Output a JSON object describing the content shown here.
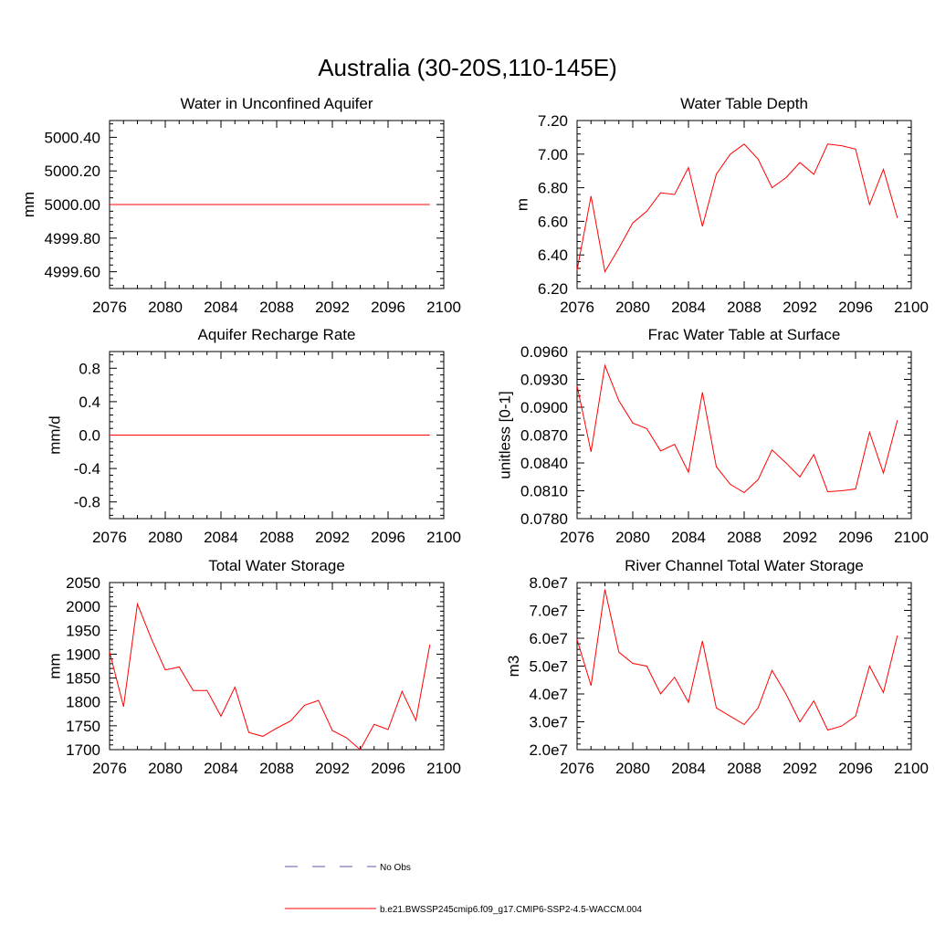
{
  "figure": {
    "title": "Australia (30-20S,110-145E)"
  },
  "legend": {
    "entries": [
      {
        "label": "No Obs",
        "color": "#5555aa",
        "dashed": true
      },
      {
        "label": "b.e21.BWSSP245cmip6.f09_g17.CMIP6-SSP2-4.5-WACCM.004",
        "color": "#ff0000",
        "dashed": false
      }
    ]
  },
  "chart_data": [
    {
      "type": "line",
      "title": "Water in Unconfined Aquifer",
      "ylabel": "mm",
      "xlim": [
        2076,
        2100
      ],
      "ylim": [
        4999.5,
        5000.5
      ],
      "yticks": [
        4999.6,
        4999.8,
        5000.0,
        5000.2,
        5000.4
      ],
      "ytick_labels": [
        "4999.60",
        "4999.80",
        "5000.00",
        "5000.20",
        "5000.40"
      ],
      "xticks": [
        2076,
        2080,
        2084,
        2088,
        2092,
        2096,
        2100
      ],
      "xtick_labels": [
        "2076",
        "2080",
        "2084",
        "2088",
        "2092",
        "2096",
        "2100"
      ],
      "series": [
        {
          "color": "#ff0000",
          "x": [
            2076,
            2077,
            2078,
            2079,
            2080,
            2081,
            2082,
            2083,
            2084,
            2085,
            2086,
            2087,
            2088,
            2089,
            2090,
            2091,
            2092,
            2093,
            2094,
            2095,
            2096,
            2097,
            2098,
            2099
          ],
          "y": [
            5000,
            5000,
            5000,
            5000,
            5000,
            5000,
            5000,
            5000,
            5000,
            5000,
            5000,
            5000,
            5000,
            5000,
            5000,
            5000,
            5000,
            5000,
            5000,
            5000,
            5000,
            5000,
            5000,
            5000
          ]
        }
      ]
    },
    {
      "type": "line",
      "title": "Water Table Depth",
      "ylabel": "m",
      "xlim": [
        2076,
        2100
      ],
      "ylim": [
        6.2,
        7.2
      ],
      "yticks": [
        6.2,
        6.4,
        6.6,
        6.8,
        7.0,
        7.2
      ],
      "ytick_labels": [
        "6.20",
        "6.40",
        "6.60",
        "6.80",
        "7.00",
        "7.20"
      ],
      "xticks": [
        2076,
        2080,
        2084,
        2088,
        2092,
        2096,
        2100
      ],
      "xtick_labels": [
        "2076",
        "2080",
        "2084",
        "2088",
        "2092",
        "2096",
        "2100"
      ],
      "series": [
        {
          "color": "#ff0000",
          "x": [
            2076,
            2077,
            2078,
            2079,
            2080,
            2081,
            2082,
            2083,
            2084,
            2085,
            2086,
            2087,
            2088,
            2089,
            2090,
            2091,
            2092,
            2093,
            2094,
            2095,
            2096,
            2097,
            2098,
            2099
          ],
          "y": [
            6.31,
            6.75,
            6.3,
            6.44,
            6.59,
            6.66,
            6.77,
            6.76,
            6.92,
            6.57,
            6.88,
            7.0,
            7.06,
            6.97,
            6.8,
            6.86,
            6.95,
            6.88,
            7.06,
            7.05,
            7.03,
            6.7,
            6.91,
            6.62
          ]
        }
      ]
    },
    {
      "type": "line",
      "title": "Aquifer Recharge Rate",
      "ylabel": "mm/d",
      "xlim": [
        2076,
        2100
      ],
      "ylim": [
        -1.0,
        1.0
      ],
      "yticks": [
        -0.8,
        -0.4,
        0.0,
        0.4,
        0.8
      ],
      "ytick_labels": [
        "-0.8",
        "-0.4",
        "0.0",
        "0.4",
        "0.8"
      ],
      "xticks": [
        2076,
        2080,
        2084,
        2088,
        2092,
        2096,
        2100
      ],
      "xtick_labels": [
        "2076",
        "2080",
        "2084",
        "2088",
        "2092",
        "2096",
        "2100"
      ],
      "series": [
        {
          "color": "#ff0000",
          "x": [
            2076,
            2077,
            2078,
            2079,
            2080,
            2081,
            2082,
            2083,
            2084,
            2085,
            2086,
            2087,
            2088,
            2089,
            2090,
            2091,
            2092,
            2093,
            2094,
            2095,
            2096,
            2097,
            2098,
            2099
          ],
          "y": [
            0,
            0,
            0,
            0,
            0,
            0,
            0,
            0,
            0,
            0,
            0,
            0,
            0,
            0,
            0,
            0,
            0,
            0,
            0,
            0,
            0,
            0,
            0,
            0
          ]
        }
      ]
    },
    {
      "type": "line",
      "title": "Frac Water Table at Surface",
      "ylabel": "unitless [0-1]",
      "xlim": [
        2076,
        2100
      ],
      "ylim": [
        0.078,
        0.096
      ],
      "yticks": [
        0.078,
        0.081,
        0.084,
        0.087,
        0.09,
        0.093,
        0.096
      ],
      "ytick_labels": [
        "0.0780",
        "0.0810",
        "0.0840",
        "0.0870",
        "0.0900",
        "0.0930",
        "0.0960"
      ],
      "xticks": [
        2076,
        2080,
        2084,
        2088,
        2092,
        2096,
        2100
      ],
      "xtick_labels": [
        "2076",
        "2080",
        "2084",
        "2088",
        "2092",
        "2096",
        "2100"
      ],
      "series": [
        {
          "color": "#ff0000",
          "x": [
            2076,
            2077,
            2078,
            2079,
            2080,
            2081,
            2082,
            2083,
            2084,
            2085,
            2086,
            2087,
            2088,
            2089,
            2090,
            2091,
            2092,
            2093,
            2094,
            2095,
            2096,
            2097,
            2098,
            2099
          ],
          "y": [
            0.0923,
            0.0852,
            0.0945,
            0.0907,
            0.0883,
            0.0877,
            0.0853,
            0.086,
            0.083,
            0.0916,
            0.0836,
            0.0817,
            0.0808,
            0.0822,
            0.0854,
            0.084,
            0.0825,
            0.0849,
            0.0809,
            0.081,
            0.0812,
            0.0873,
            0.0829,
            0.0886
          ]
        }
      ]
    },
    {
      "type": "line",
      "title": "Total Water Storage",
      "ylabel": "mm",
      "xlim": [
        2076,
        2100
      ],
      "ylim": [
        1700,
        2050
      ],
      "yticks": [
        1700,
        1750,
        1800,
        1850,
        1900,
        1950,
        2000,
        2050
      ],
      "ytick_labels": [
        "1700",
        "1750",
        "1800",
        "1850",
        "1900",
        "1950",
        "2000",
        "2050"
      ],
      "xticks": [
        2076,
        2080,
        2084,
        2088,
        2092,
        2096,
        2100
      ],
      "xtick_labels": [
        "2076",
        "2080",
        "2084",
        "2088",
        "2092",
        "2096",
        "2100"
      ],
      "series": [
        {
          "color": "#ff0000",
          "x": [
            2076,
            2077,
            2078,
            2079,
            2080,
            2081,
            2082,
            2083,
            2084,
            2085,
            2086,
            2087,
            2088,
            2089,
            2090,
            2091,
            2092,
            2093,
            2094,
            2095,
            2096,
            2097,
            2098,
            2099
          ],
          "y": [
            1905,
            1790,
            2005,
            1932,
            1867,
            1873,
            1824,
            1824,
            1770,
            1831,
            1736,
            1728,
            1745,
            1760,
            1793,
            1803,
            1740,
            1725,
            1700,
            1753,
            1742,
            1822,
            1761,
            1920
          ]
        }
      ]
    },
    {
      "type": "line",
      "title": "River Channel Total Water Storage",
      "ylabel": "m3",
      "xlim": [
        2076,
        2100
      ],
      "ylim": [
        20000000,
        80000000
      ],
      "yticks": [
        20000000,
        30000000,
        40000000,
        50000000,
        60000000,
        70000000,
        80000000
      ],
      "ytick_labels": [
        "2.0e7",
        "3.0e7",
        "4.0e7",
        "5.0e7",
        "6.0e7",
        "7.0e7",
        "8.0e7"
      ],
      "xticks": [
        2076,
        2080,
        2084,
        2088,
        2092,
        2096,
        2100
      ],
      "xtick_labels": [
        "2076",
        "2080",
        "2084",
        "2088",
        "2092",
        "2096",
        "2100"
      ],
      "series": [
        {
          "color": "#ff0000",
          "x": [
            2076,
            2077,
            2078,
            2079,
            2080,
            2081,
            2082,
            2083,
            2084,
            2085,
            2086,
            2087,
            2088,
            2089,
            2090,
            2091,
            2092,
            2093,
            2094,
            2095,
            2096,
            2097,
            2098,
            2099
          ],
          "y": [
            59500000,
            43000000,
            77500000,
            55000000,
            51000000,
            50000000,
            40000000,
            46000000,
            37000000,
            59000000,
            35000000,
            32000000,
            29000000,
            35000000,
            48500000,
            40000000,
            30000000,
            37500000,
            27000000,
            28500000,
            32000000,
            50000000,
            40500000,
            61000000
          ]
        }
      ]
    }
  ]
}
